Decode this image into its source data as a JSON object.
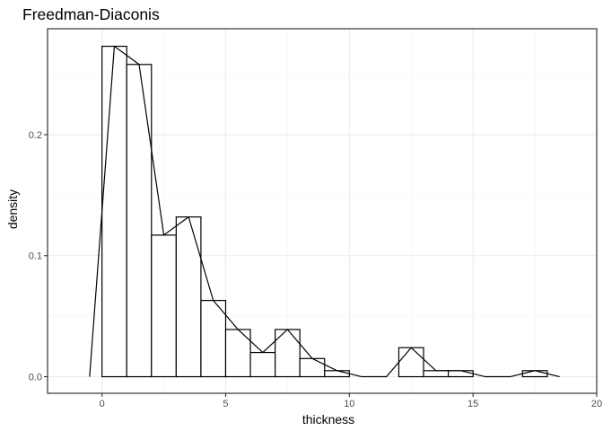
{
  "chart_data": {
    "type": "bar",
    "title": "Freedman-Diaconis",
    "xlabel": "thickness",
    "ylabel": "density",
    "xlim": [
      -2.2,
      20
    ],
    "ylim": [
      -0.0137,
      0.2875
    ],
    "x_ticks": [
      0,
      5,
      10,
      15,
      20
    ],
    "x_tick_labels": [
      "0",
      "5",
      "10",
      "15",
      "20"
    ],
    "y_ticks": [
      0.0,
      0.1,
      0.2
    ],
    "y_tick_labels": [
      "0.0",
      "0.1",
      "0.2"
    ],
    "grid": true,
    "bin_width": 1,
    "bins": [
      {
        "x0": 0,
        "x1": 1,
        "density": 0.273
      },
      {
        "x0": 1,
        "x1": 2,
        "density": 0.258
      },
      {
        "x0": 2,
        "x1": 3,
        "density": 0.117
      },
      {
        "x0": 3,
        "x1": 4,
        "density": 0.132
      },
      {
        "x0": 4,
        "x1": 5,
        "density": 0.063
      },
      {
        "x0": 5,
        "x1": 6,
        "density": 0.039
      },
      {
        "x0": 6,
        "x1": 7,
        "density": 0.02
      },
      {
        "x0": 7,
        "x1": 8,
        "density": 0.039
      },
      {
        "x0": 8,
        "x1": 9,
        "density": 0.015
      },
      {
        "x0": 9,
        "x1": 10,
        "density": 0.005
      },
      {
        "x0": 10,
        "x1": 11,
        "density": 0.0
      },
      {
        "x0": 11,
        "x1": 12,
        "density": 0.0
      },
      {
        "x0": 12,
        "x1": 13,
        "density": 0.024
      },
      {
        "x0": 13,
        "x1": 14,
        "density": 0.005
      },
      {
        "x0": 14,
        "x1": 15,
        "density": 0.005
      },
      {
        "x0": 15,
        "x1": 16,
        "density": 0.0
      },
      {
        "x0": 16,
        "x1": 17,
        "density": 0.0
      },
      {
        "x0": 17,
        "x1": 18,
        "density": 0.005
      }
    ],
    "frequency_polygon": {
      "x": [
        -0.5,
        0.5,
        1.5,
        2.5,
        3.5,
        4.5,
        5.5,
        6.5,
        7.5,
        8.5,
        9.5,
        10.5,
        11.5,
        12.5,
        13.5,
        14.5,
        15.5,
        16.5,
        17.5,
        18.5
      ],
      "y": [
        0.0,
        0.273,
        0.258,
        0.117,
        0.132,
        0.063,
        0.039,
        0.02,
        0.039,
        0.015,
        0.005,
        0.0,
        0.0,
        0.024,
        0.005,
        0.005,
        0.0,
        0.0,
        0.005,
        0.0
      ]
    }
  }
}
